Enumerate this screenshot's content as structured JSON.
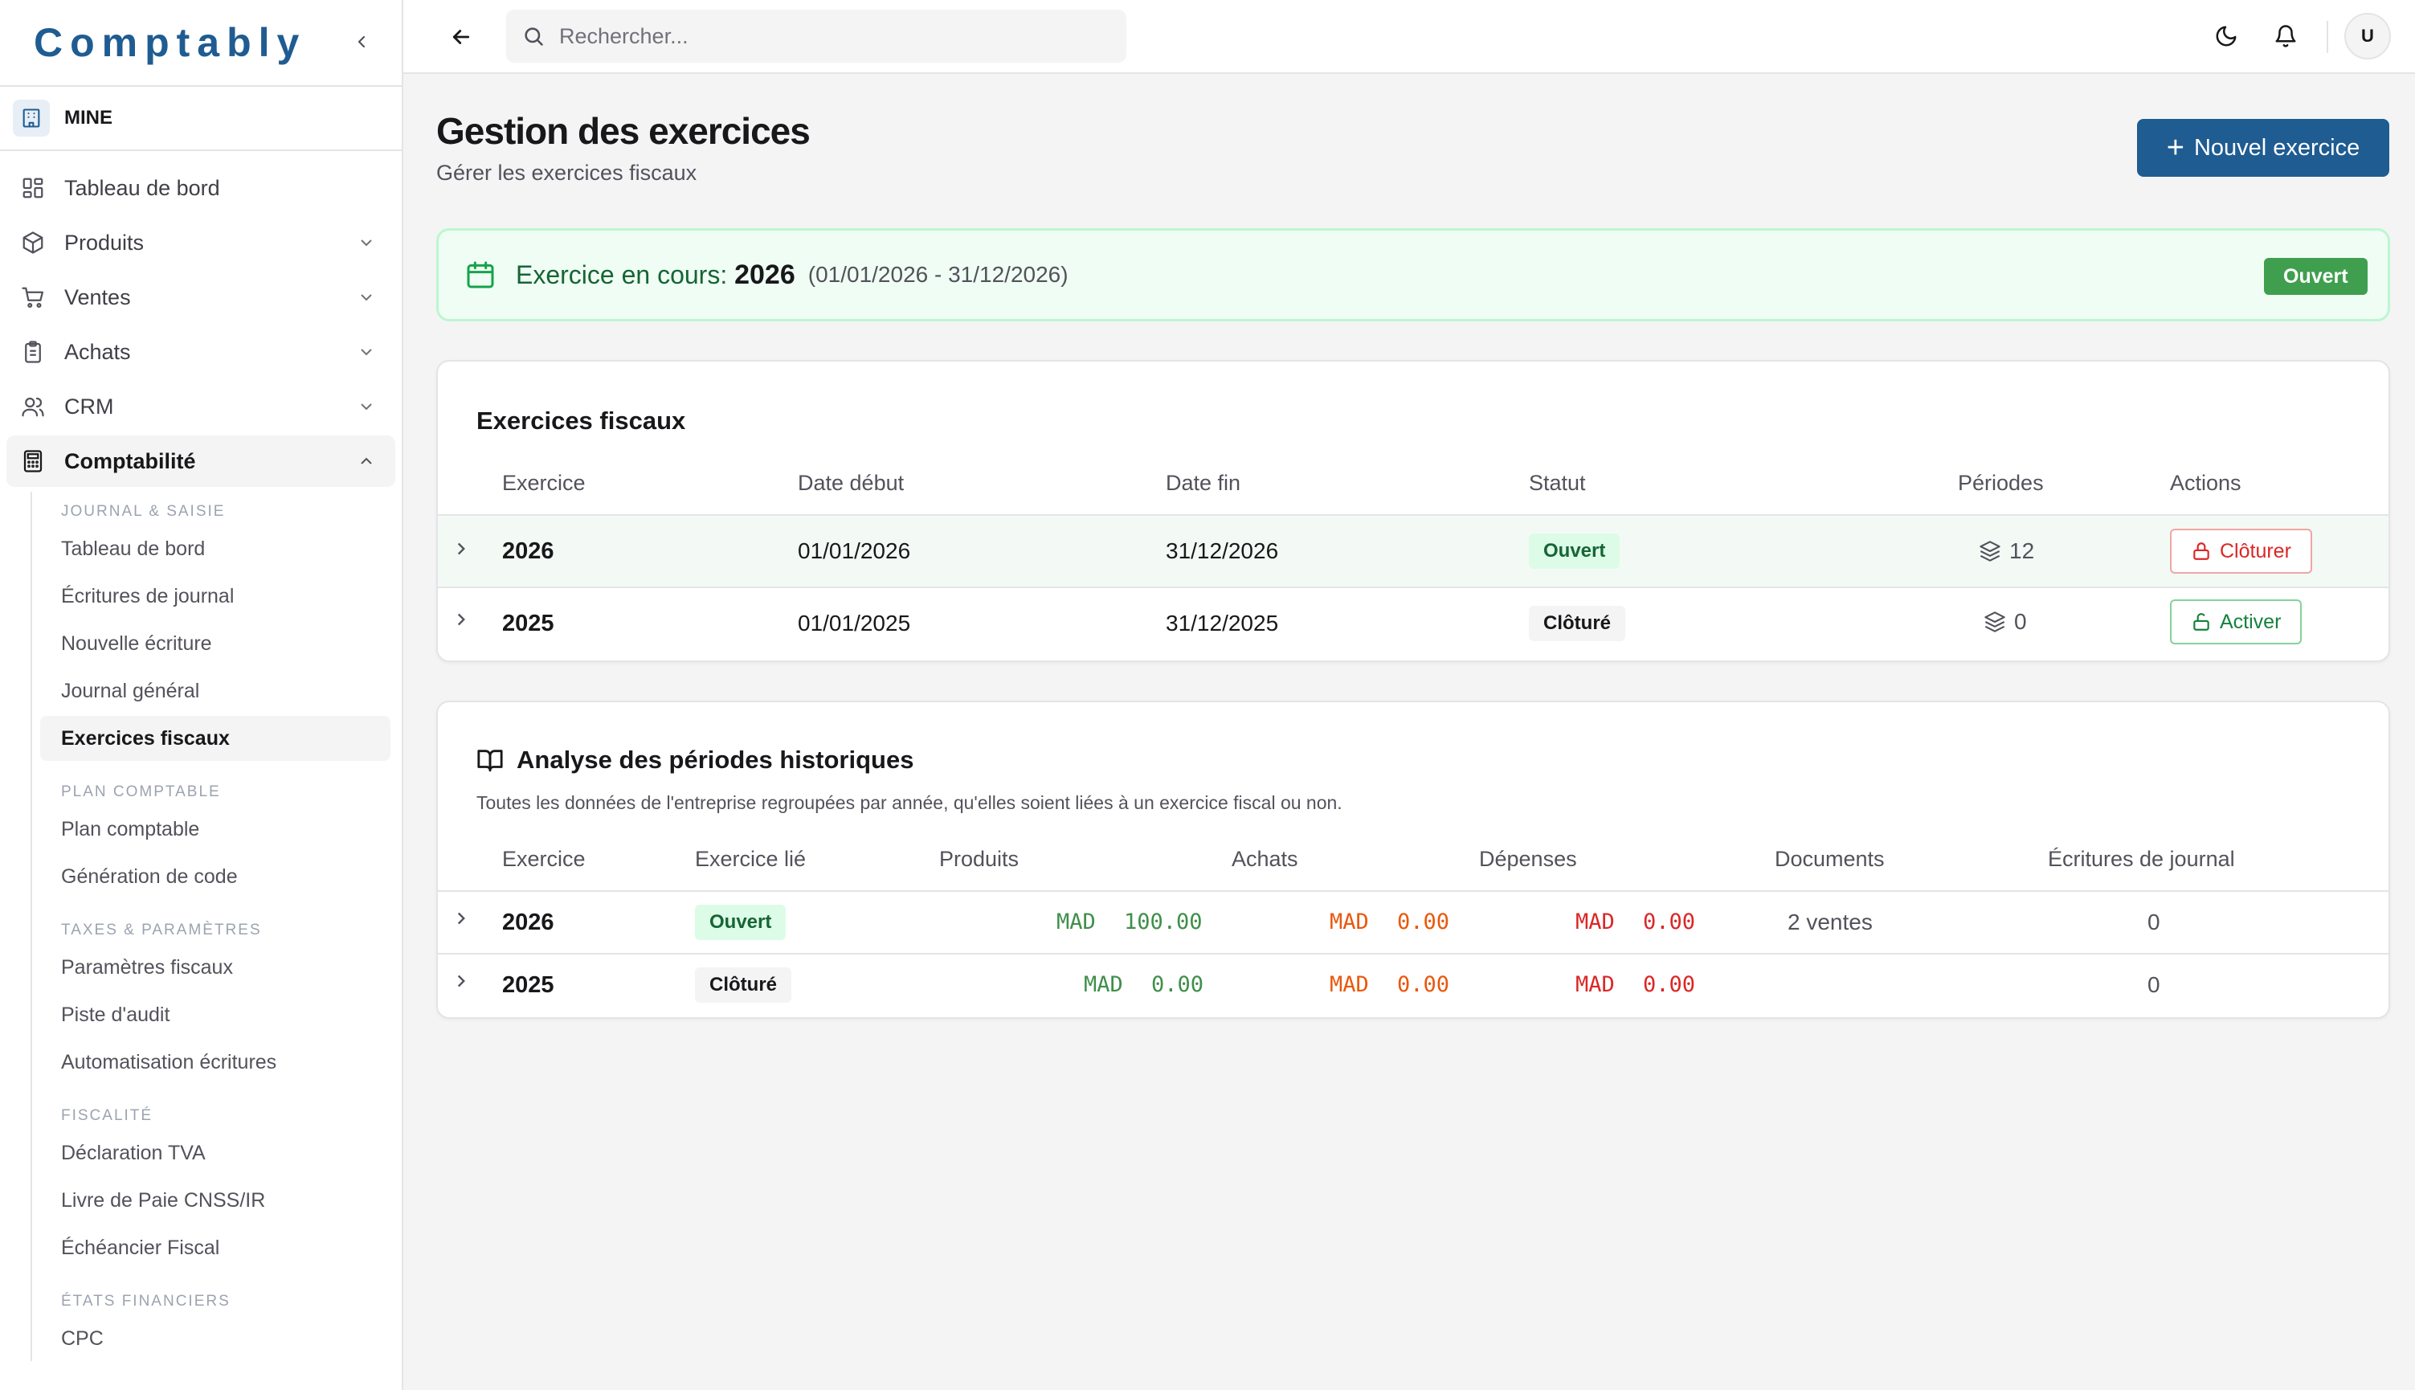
{
  "app": {
    "brand": "Comptably",
    "company": "MINE"
  },
  "colors": {
    "primary": "#1f5c91",
    "success": "#3f9f4f",
    "danger": "#dc2626",
    "expense": "#ea580c"
  },
  "sidebar": {
    "nav": [
      {
        "label": "Tableau de bord",
        "icon": "dashboard-icon"
      },
      {
        "label": "Produits",
        "icon": "package-icon"
      },
      {
        "label": "Ventes",
        "icon": "cart-icon"
      },
      {
        "label": "Achats",
        "icon": "clipboard-icon"
      },
      {
        "label": "CRM",
        "icon": "users-icon"
      },
      {
        "label": "Comptabilité",
        "icon": "calculator-icon"
      }
    ],
    "sections": [
      {
        "title": "JOURNAL & SAISIE",
        "items": [
          "Tableau de bord",
          "Écritures de journal",
          "Nouvelle écriture",
          "Journal général",
          "Exercices fiscaux"
        ]
      },
      {
        "title": "PLAN COMPTABLE",
        "items": [
          "Plan comptable",
          "Génération de code"
        ]
      },
      {
        "title": "TAXES & PARAMÈTRES",
        "items": [
          "Paramètres fiscaux",
          "Piste d'audit",
          "Automatisation écritures"
        ]
      },
      {
        "title": "FISCALITÉ",
        "items": [
          "Déclaration TVA",
          "Livre de Paie CNSS/IR",
          "Échéancier Fiscal"
        ]
      },
      {
        "title": "ÉTATS FINANCIERS",
        "items": [
          "CPC"
        ]
      }
    ]
  },
  "topbar": {
    "search_placeholder": "Rechercher...",
    "avatar": "U"
  },
  "page": {
    "title": "Gestion des exercices",
    "subtitle": "Gérer les exercices fiscaux",
    "new_button": "Nouvel exercice"
  },
  "current": {
    "label": "Exercice en cours:",
    "year": "2026",
    "range": "(01/01/2026 - 31/12/2026)",
    "status": "Ouvert"
  },
  "fiscal_table": {
    "title": "Exercices fiscaux",
    "headers": [
      "Exercice",
      "Date début",
      "Date fin",
      "Statut",
      "Périodes",
      "Actions"
    ],
    "rows": [
      {
        "exercice": "2026",
        "debut": "01/01/2026",
        "fin": "31/12/2026",
        "statut": "Ouvert",
        "periodes": "12",
        "action": "Clôturer"
      },
      {
        "exercice": "2025",
        "debut": "01/01/2025",
        "fin": "31/12/2025",
        "statut": "Clôturé",
        "periodes": "0",
        "action": "Activer"
      }
    ]
  },
  "history_table": {
    "title": "Analyse des périodes historiques",
    "description": "Toutes les données de l'entreprise regroupées par année, qu'elles soient liées à un exercice fiscal ou non.",
    "headers": [
      "Exercice",
      "Exercice lié",
      "Produits",
      "Achats",
      "Dépenses",
      "Documents",
      "Écritures de journal"
    ],
    "currency": "MAD",
    "rows": [
      {
        "exercice": "2026",
        "lie": "Ouvert",
        "produits": "100.00",
        "achats": "0.00",
        "depenses": "0.00",
        "documents": "2 ventes",
        "ecritures": "0"
      },
      {
        "exercice": "2025",
        "lie": "Clôturé",
        "produits": "0.00",
        "achats": "0.00",
        "depenses": "0.00",
        "documents": "",
        "ecritures": "0"
      }
    ]
  }
}
